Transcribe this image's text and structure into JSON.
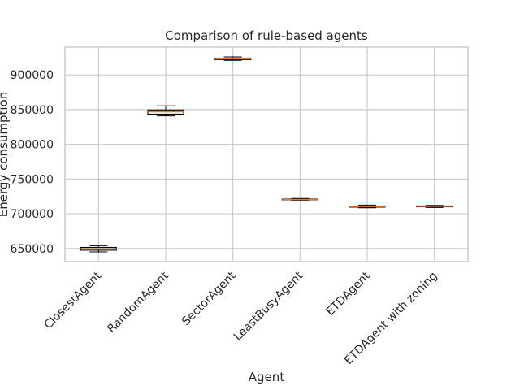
{
  "chart_data": {
    "type": "box",
    "title": "Comparison of rule-based agents",
    "xlabel": "Agent",
    "ylabel": "Energy consumption",
    "categories": [
      "ClosestAgent",
      "RandomAgent",
      "SectorAgent",
      "LeastBusyAgent",
      "ETDAgent",
      "ETDAgent with zoning"
    ],
    "boxes": [
      {
        "whisker_low": 645000,
        "q1": 647500,
        "median": 649500,
        "q3": 651500,
        "whisker_high": 654000
      },
      {
        "whisker_low": 841000,
        "q1": 843500,
        "median": 847000,
        "q3": 849500,
        "whisker_high": 855500
      },
      {
        "whisker_low": 921000,
        "q1": 922000,
        "median": 923200,
        "q3": 924200,
        "whisker_high": 926000
      },
      {
        "whisker_low": 719500,
        "q1": 720000,
        "median": 720600,
        "q3": 721200,
        "whisker_high": 722000
      },
      {
        "whisker_low": 708500,
        "q1": 709500,
        "median": 710500,
        "q3": 711200,
        "whisker_high": 712500
      },
      {
        "whisker_low": 709000,
        "q1": 710000,
        "median": 710700,
        "q3": 711200,
        "whisker_high": 712000
      }
    ],
    "yticks": [
      650000,
      700000,
      750000,
      800000,
      850000,
      900000
    ],
    "ytick_labels": [
      "650000",
      "700000",
      "750000",
      "800000",
      "850000",
      "900000"
    ],
    "ylim": [
      631000,
      940000
    ],
    "grid": true,
    "colors": {
      "box": "#000000",
      "median": "#e07b39",
      "grid": "#cccccc"
    }
  }
}
